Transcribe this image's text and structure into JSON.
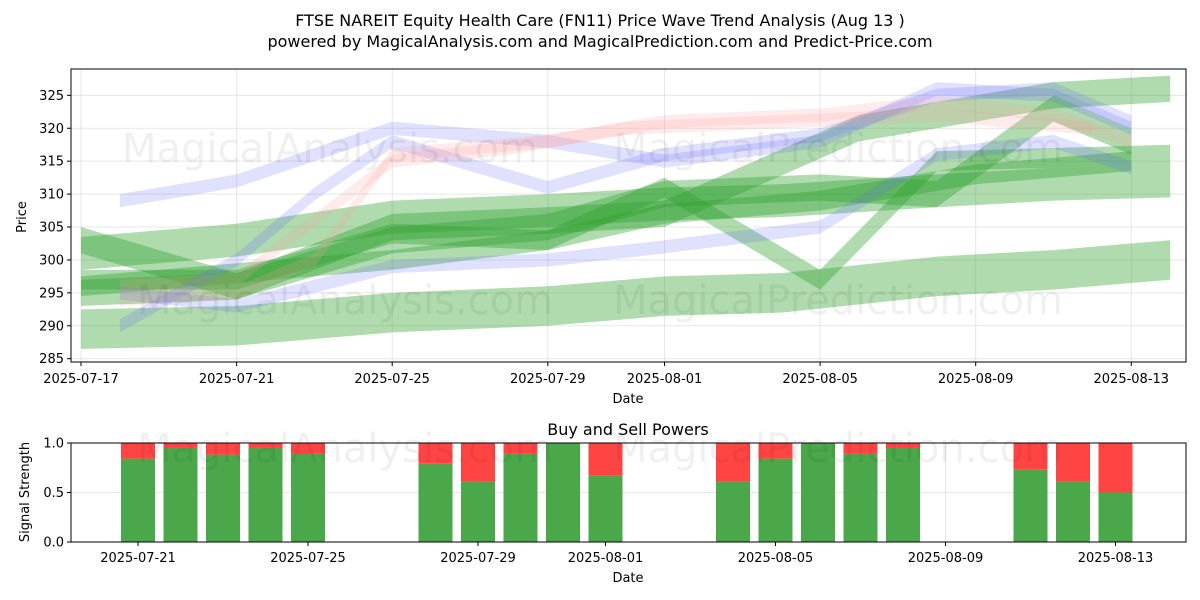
{
  "title_line1": "FTSE NAREIT Equity Health Care (FN11) Price Wave Trend Analysis (Aug 13 )",
  "title_line2": "powered by MagicalAnalysis.com and MagicalPrediction.com and Predict-Price.com",
  "watermark_1": "MagicalAnalysis.com",
  "watermark_2": "MagicalPrediction.com",
  "colors": {
    "green": "#2ca02c",
    "blue": "#6666ff",
    "red": "#ff9999",
    "buy": "#4aa84a",
    "sell": "#ff4444"
  },
  "chart_data": [
    {
      "type": "area",
      "title": "",
      "xlabel": "Date",
      "ylabel": "Price",
      "x_ticks": [
        "2025-07-17",
        "2025-07-21",
        "2025-07-25",
        "2025-07-29",
        "2025-08-01",
        "2025-08-05",
        "2025-08-09",
        "2025-08-13"
      ],
      "y_ticks": [
        285,
        290,
        295,
        300,
        305,
        310,
        315,
        320,
        325
      ],
      "xlim": [
        "2025-07-17",
        "2025-08-14"
      ],
      "ylim": [
        284.5,
        329
      ],
      "grid": true,
      "series": [
        {
          "color": "green",
          "x": [
            "2025-07-17",
            "2025-07-21",
            "2025-07-25",
            "2025-07-29",
            "2025-08-01",
            "2025-08-04",
            "2025-08-08",
            "2025-08-11",
            "2025-08-14"
          ],
          "values": [
            289.5,
            290,
            292,
            293,
            294.5,
            295,
            297.5,
            298.5,
            300
          ],
          "width": 6
        },
        {
          "color": "green",
          "x": [
            "2025-07-17",
            "2025-07-21",
            "2025-07-25",
            "2025-07-29",
            "2025-08-01",
            "2025-08-04",
            "2025-08-08",
            "2025-08-11",
            "2025-08-14"
          ],
          "values": [
            301,
            303,
            306.5,
            307.5,
            308.5,
            309,
            310.5,
            311.5,
            312
          ],
          "width": 5
        },
        {
          "color": "green",
          "x": [
            "2025-07-17",
            "2025-07-21",
            "2025-07-25",
            "2025-07-29",
            "2025-08-01",
            "2025-08-05",
            "2025-08-08",
            "2025-08-11",
            "2025-08-14"
          ],
          "values": [
            297,
            297,
            304,
            303,
            311,
            297,
            315,
            315.5,
            316
          ],
          "width": 3
        },
        {
          "color": "green",
          "x": [
            "2025-07-17",
            "2025-07-21",
            "2025-07-25",
            "2025-07-29",
            "2025-08-01",
            "2025-08-05",
            "2025-08-08",
            "2025-08-11",
            "2025-08-13"
          ],
          "values": [
            303,
            296,
            303,
            305,
            310,
            311,
            310,
            323,
            318
          ],
          "width": 4
        },
        {
          "color": "green",
          "x": [
            "2025-07-17",
            "2025-07-21",
            "2025-07-25",
            "2025-07-29",
            "2025-08-01",
            "2025-08-06",
            "2025-08-08",
            "2025-08-11",
            "2025-08-14"
          ],
          "values": [
            295,
            296,
            305,
            306,
            307,
            320,
            322,
            325,
            326
          ],
          "width": 4
        },
        {
          "color": "green",
          "x": [
            "2025-07-17",
            "2025-07-21",
            "2025-07-25",
            "2025-07-29",
            "2025-08-01",
            "2025-08-05",
            "2025-08-09",
            "2025-08-13"
          ],
          "values": [
            296,
            298,
            300,
            303,
            307,
            309,
            313,
            315
          ],
          "width": 3
        },
        {
          "color": "blue",
          "x": [
            "2025-07-18",
            "2025-07-21",
            "2025-07-25",
            "2025-07-29",
            "2025-08-01",
            "2025-08-05",
            "2025-08-08",
            "2025-08-11",
            "2025-08-13"
          ],
          "values": [
            309,
            312,
            320,
            318,
            315,
            318,
            326,
            325,
            320
          ],
          "width": 2
        },
        {
          "color": "blue",
          "x": [
            "2025-07-18",
            "2025-07-21",
            "2025-07-23",
            "2025-07-25",
            "2025-07-29",
            "2025-08-01",
            "2025-08-05",
            "2025-08-08",
            "2025-08-11",
            "2025-08-13"
          ],
          "values": [
            290,
            300,
            310,
            318,
            311,
            316,
            319,
            325,
            326,
            321
          ],
          "width": 2
        },
        {
          "color": "blue",
          "x": [
            "2025-07-18",
            "2025-07-21",
            "2025-07-25",
            "2025-07-29",
            "2025-08-01",
            "2025-08-05",
            "2025-08-08",
            "2025-08-11",
            "2025-08-13"
          ],
          "values": [
            295,
            293,
            299,
            300,
            302,
            305,
            316,
            318,
            314
          ],
          "width": 2
        },
        {
          "color": "red",
          "x": [
            "2025-07-18",
            "2025-07-21",
            "2025-07-23",
            "2025-07-25",
            "2025-07-29",
            "2025-08-01",
            "2025-08-05",
            "2025-08-08",
            "2025-08-11",
            "2025-08-13"
          ],
          "values": [
            294,
            295,
            300,
            316,
            318,
            321,
            322,
            324,
            322,
            318
          ],
          "width": 2
        },
        {
          "color": "red",
          "x": [
            "2025-07-18",
            "2025-07-21",
            "2025-07-23",
            "2025-07-25",
            "2025-07-28",
            "2025-07-31",
            "2025-08-04",
            "2025-08-08",
            "2025-08-12"
          ],
          "values": [
            296,
            297,
            306,
            315,
            317,
            320,
            321,
            322,
            320
          ],
          "width": 2
        }
      ]
    },
    {
      "type": "bar",
      "title": "Buy and Sell Powers",
      "xlabel": "Date",
      "ylabel": "Signal Strength",
      "x_ticks": [
        "2025-07-21",
        "2025-07-25",
        "2025-07-29",
        "2025-08-01",
        "2025-08-05",
        "2025-08-09",
        "2025-08-13"
      ],
      "y_ticks": [
        0.0,
        0.5,
        1.0
      ],
      "ylim": [
        0,
        1
      ],
      "grid": true,
      "x": [
        "2025-07-21",
        "2025-07-22",
        "2025-07-23",
        "2025-07-24",
        "2025-07-25",
        "2025-07-28",
        "2025-07-29",
        "2025-07-30",
        "2025-07-31",
        "2025-08-01",
        "2025-08-04",
        "2025-08-05",
        "2025-08-06",
        "2025-08-07",
        "2025-08-08",
        "2025-08-11",
        "2025-08-12",
        "2025-08-13"
      ],
      "buy": [
        0.84,
        0.95,
        0.88,
        0.95,
        0.89,
        0.79,
        0.61,
        0.89,
        1.0,
        0.67,
        0.61,
        0.84,
        1.0,
        0.89,
        0.95,
        0.73,
        0.61,
        0.5
      ],
      "sell": [
        0.16,
        0.05,
        0.12,
        0.05,
        0.11,
        0.21,
        0.39,
        0.11,
        0.0,
        0.33,
        0.39,
        0.16,
        0.0,
        0.11,
        0.05,
        0.27,
        0.39,
        0.5
      ]
    }
  ]
}
